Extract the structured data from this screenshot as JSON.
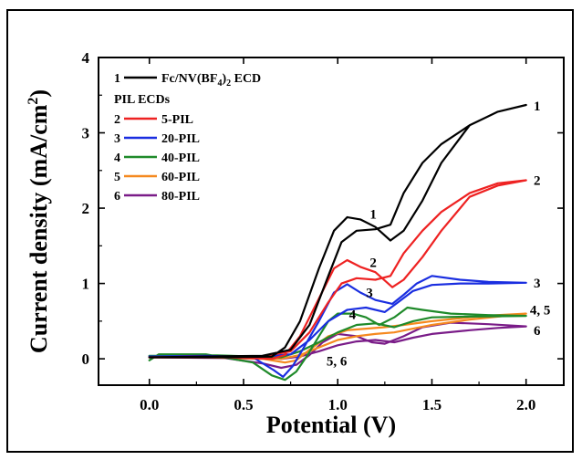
{
  "chart_data": {
    "type": "line",
    "xlabel": "Potential (V)",
    "ylabel": "Current density (mA/cm",
    "ylabel_sup": "2",
    "ylabel_close": ")",
    "xlim": [
      -0.27,
      2.2
    ],
    "ylim": [
      -0.35,
      4.0
    ],
    "xticks": [
      0.0,
      0.5,
      1.0,
      1.5,
      2.0
    ],
    "xtick_labels": [
      "0.0",
      "0.5",
      "1.0",
      "1.5",
      "2.0"
    ],
    "yticks": [
      0,
      1,
      2,
      3,
      4
    ],
    "ytick_labels": [
      "0",
      "1",
      "2",
      "3",
      "4"
    ],
    "legend": {
      "placement": "top-left",
      "entries": [
        {
          "num": "1",
          "label": "Fc/NV(BF",
          "sub": "4",
          "label_end": ")",
          "sub2": "2",
          "label_end2": " ECD",
          "color": "#000000"
        },
        {
          "heading": "PIL ECDs"
        },
        {
          "num": "2",
          "label": "5-PIL",
          "color": "#ee2222"
        },
        {
          "num": "3",
          "label": "20-PIL",
          "color": "#1a2ee0"
        },
        {
          "num": "4",
          "label": "40-PIL",
          "color": "#1f8a2a"
        },
        {
          "num": "5",
          "label": "60-PIL",
          "color": "#f5891f"
        },
        {
          "num": "6",
          "label": "80-PIL",
          "color": "#7a1c88"
        }
      ]
    },
    "annotations": [
      {
        "text": "1",
        "x": 1.17,
        "y": 1.92
      },
      {
        "text": "2",
        "x": 1.17,
        "y": 1.28
      },
      {
        "text": "3",
        "x": 1.15,
        "y": 0.88
      },
      {
        "text": "4",
        "x": 1.06,
        "y": 0.59
      },
      {
        "text": "5, 6",
        "x": 0.94,
        "y": -0.03
      },
      {
        "text": "1",
        "x": 2.04,
        "y": 3.36
      },
      {
        "text": "2",
        "x": 2.04,
        "y": 2.37
      },
      {
        "text": "3",
        "x": 2.04,
        "y": 1.01
      },
      {
        "text": "4, 5",
        "x": 2.02,
        "y": 0.65
      },
      {
        "text": "6",
        "x": 2.04,
        "y": 0.38
      }
    ],
    "series": [
      {
        "id": "1",
        "color": "#000000",
        "forward": [
          [
            0.0,
            0.02
          ],
          [
            0.3,
            0.03
          ],
          [
            0.6,
            0.04
          ],
          [
            0.75,
            0.12
          ],
          [
            0.85,
            0.45
          ],
          [
            0.95,
            1.1
          ],
          [
            1.02,
            1.55
          ],
          [
            1.1,
            1.7
          ],
          [
            1.2,
            1.72
          ],
          [
            1.28,
            1.78
          ],
          [
            1.35,
            2.2
          ],
          [
            1.45,
            2.6
          ],
          [
            1.55,
            2.85
          ],
          [
            1.7,
            3.1
          ],
          [
            1.85,
            3.28
          ],
          [
            2.0,
            3.37
          ]
        ],
        "reverse": [
          [
            2.0,
            3.37
          ],
          [
            1.85,
            3.28
          ],
          [
            1.7,
            3.1
          ],
          [
            1.55,
            2.6
          ],
          [
            1.45,
            2.1
          ],
          [
            1.35,
            1.7
          ],
          [
            1.28,
            1.57
          ],
          [
            1.2,
            1.75
          ],
          [
            1.12,
            1.85
          ],
          [
            1.05,
            1.88
          ],
          [
            0.98,
            1.7
          ],
          [
            0.9,
            1.2
          ],
          [
            0.8,
            0.5
          ],
          [
            0.72,
            0.15
          ],
          [
            0.65,
            0.03
          ],
          [
            0.4,
            0.02
          ],
          [
            0.0,
            0.02
          ]
        ]
      },
      {
        "id": "2",
        "color": "#ee2222",
        "forward": [
          [
            0.0,
            0.02
          ],
          [
            0.3,
            0.03
          ],
          [
            0.6,
            0.03
          ],
          [
            0.75,
            0.1
          ],
          [
            0.85,
            0.35
          ],
          [
            0.95,
            0.75
          ],
          [
            1.02,
            1.0
          ],
          [
            1.1,
            1.07
          ],
          [
            1.2,
            1.05
          ],
          [
            1.28,
            1.1
          ],
          [
            1.35,
            1.4
          ],
          [
            1.45,
            1.7
          ],
          [
            1.55,
            1.95
          ],
          [
            1.7,
            2.2
          ],
          [
            1.85,
            2.33
          ],
          [
            2.0,
            2.37
          ]
        ],
        "reverse": [
          [
            2.0,
            2.37
          ],
          [
            1.85,
            2.3
          ],
          [
            1.7,
            2.15
          ],
          [
            1.55,
            1.7
          ],
          [
            1.45,
            1.35
          ],
          [
            1.35,
            1.05
          ],
          [
            1.29,
            0.95
          ],
          [
            1.2,
            1.15
          ],
          [
            1.12,
            1.22
          ],
          [
            1.05,
            1.31
          ],
          [
            0.98,
            1.2
          ],
          [
            0.9,
            0.8
          ],
          [
            0.8,
            0.3
          ],
          [
            0.72,
            0.05
          ],
          [
            0.65,
            0.0
          ],
          [
            0.4,
            0.02
          ],
          [
            0.0,
            0.02
          ]
        ]
      },
      {
        "id": "3",
        "color": "#1a2ee0",
        "forward": [
          [
            0.0,
            0.03
          ],
          [
            0.3,
            0.03
          ],
          [
            0.6,
            0.03
          ],
          [
            0.75,
            0.06
          ],
          [
            0.85,
            0.25
          ],
          [
            0.95,
            0.5
          ],
          [
            1.05,
            0.65
          ],
          [
            1.15,
            0.68
          ],
          [
            1.25,
            0.62
          ],
          [
            1.32,
            0.75
          ],
          [
            1.4,
            0.9
          ],
          [
            1.5,
            0.98
          ],
          [
            1.65,
            1.0
          ],
          [
            1.8,
            1.0
          ],
          [
            2.0,
            1.01
          ]
        ],
        "reverse": [
          [
            2.0,
            1.01
          ],
          [
            1.8,
            1.02
          ],
          [
            1.65,
            1.05
          ],
          [
            1.5,
            1.1
          ],
          [
            1.42,
            1.0
          ],
          [
            1.35,
            0.85
          ],
          [
            1.29,
            0.73
          ],
          [
            1.2,
            0.78
          ],
          [
            1.12,
            0.88
          ],
          [
            1.05,
            0.99
          ],
          [
            0.98,
            0.88
          ],
          [
            0.9,
            0.5
          ],
          [
            0.82,
            0.15
          ],
          [
            0.76,
            -0.1
          ],
          [
            0.71,
            -0.24
          ],
          [
            0.66,
            -0.15
          ],
          [
            0.55,
            0.02
          ],
          [
            0.3,
            0.04
          ],
          [
            0.0,
            0.03
          ]
        ]
      },
      {
        "id": "4",
        "color": "#1f8a2a",
        "forward": [
          [
            0.0,
            0.04
          ],
          [
            0.3,
            0.05
          ],
          [
            0.55,
            0.03
          ],
          [
            0.7,
            0.02
          ],
          [
            0.8,
            0.1
          ],
          [
            0.9,
            0.22
          ],
          [
            1.0,
            0.35
          ],
          [
            1.1,
            0.45
          ],
          [
            1.2,
            0.47
          ],
          [
            1.3,
            0.42
          ],
          [
            1.4,
            0.5
          ],
          [
            1.5,
            0.55
          ],
          [
            1.7,
            0.56
          ],
          [
            2.0,
            0.57
          ]
        ],
        "reverse": [
          [
            2.0,
            0.57
          ],
          [
            1.8,
            0.58
          ],
          [
            1.6,
            0.6
          ],
          [
            1.45,
            0.65
          ],
          [
            1.37,
            0.68
          ],
          [
            1.3,
            0.55
          ],
          [
            1.22,
            0.45
          ],
          [
            1.15,
            0.55
          ],
          [
            1.08,
            0.6
          ],
          [
            1.0,
            0.6
          ],
          [
            0.95,
            0.5
          ],
          [
            0.9,
            0.3
          ],
          [
            0.84,
            0.05
          ],
          [
            0.78,
            -0.17
          ],
          [
            0.72,
            -0.28
          ],
          [
            0.65,
            -0.22
          ],
          [
            0.55,
            -0.05
          ],
          [
            0.3,
            0.06
          ],
          [
            0.05,
            0.06
          ],
          [
            0.0,
            -0.02
          ]
        ]
      },
      {
        "id": "5",
        "color": "#f5891f",
        "forward": [
          [
            0.0,
            0.02
          ],
          [
            0.5,
            0.03
          ],
          [
            0.7,
            0.0
          ],
          [
            0.8,
            0.05
          ],
          [
            0.9,
            0.15
          ],
          [
            1.0,
            0.25
          ],
          [
            1.1,
            0.3
          ],
          [
            1.2,
            0.33
          ],
          [
            1.3,
            0.35
          ],
          [
            1.4,
            0.4
          ],
          [
            1.5,
            0.45
          ],
          [
            1.7,
            0.52
          ],
          [
            1.85,
            0.56
          ],
          [
            2.0,
            0.6
          ]
        ],
        "reverse": [
          [
            2.0,
            0.6
          ],
          [
            1.85,
            0.58
          ],
          [
            1.7,
            0.55
          ],
          [
            1.5,
            0.5
          ],
          [
            1.35,
            0.45
          ],
          [
            1.25,
            0.42
          ],
          [
            1.15,
            0.4
          ],
          [
            1.05,
            0.38
          ],
          [
            0.95,
            0.3
          ],
          [
            0.85,
            0.12
          ],
          [
            0.78,
            -0.02
          ],
          [
            0.72,
            -0.05
          ],
          [
            0.6,
            0.0
          ],
          [
            0.3,
            0.02
          ],
          [
            0.0,
            0.02
          ]
        ]
      },
      {
        "id": "6",
        "color": "#7a1c88",
        "forward": [
          [
            0.0,
            0.02
          ],
          [
            0.5,
            0.02
          ],
          [
            0.7,
            0.0
          ],
          [
            0.8,
            0.03
          ],
          [
            0.9,
            0.1
          ],
          [
            1.0,
            0.18
          ],
          [
            1.1,
            0.23
          ],
          [
            1.2,
            0.25
          ],
          [
            1.3,
            0.22
          ],
          [
            1.4,
            0.28
          ],
          [
            1.5,
            0.33
          ],
          [
            1.7,
            0.38
          ],
          [
            1.85,
            0.41
          ],
          [
            2.0,
            0.43
          ]
        ],
        "reverse": [
          [
            2.0,
            0.43
          ],
          [
            1.8,
            0.46
          ],
          [
            1.6,
            0.48
          ],
          [
            1.45,
            0.42
          ],
          [
            1.35,
            0.3
          ],
          [
            1.25,
            0.2
          ],
          [
            1.18,
            0.22
          ],
          [
            1.1,
            0.3
          ],
          [
            1.0,
            0.33
          ],
          [
            0.92,
            0.22
          ],
          [
            0.85,
            0.05
          ],
          [
            0.78,
            -0.08
          ],
          [
            0.7,
            -0.12
          ],
          [
            0.6,
            -0.06
          ],
          [
            0.4,
            0.01
          ],
          [
            0.0,
            0.02
          ]
        ]
      }
    ]
  }
}
